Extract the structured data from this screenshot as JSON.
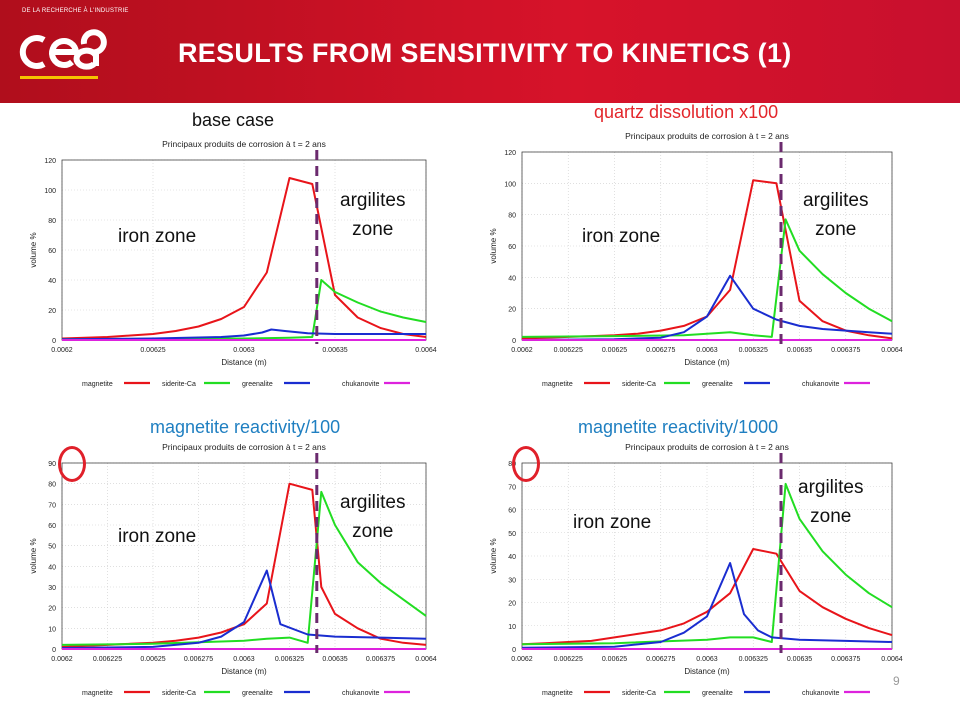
{
  "header": {
    "logo_tagline": "DE LA RECHERCHE À L'INDUSTRIE",
    "logo_text": "cea",
    "title": "RESULTS FROM SENSITIVITY TO KINETICS (1)",
    "background": "#c8102e"
  },
  "page_number": "9",
  "zone_labels": {
    "iron": "iron zone",
    "argilites_line1": "argilites",
    "argilites_line2": "zone"
  },
  "colors": {
    "magnetite": "#e8141a",
    "siderite": "#22dd22",
    "greenalite": "#1a2dd0",
    "chukanovite": "#dd22dd",
    "boundary": "#6b2a6e",
    "label_black": "#111111",
    "label_red": "#e3262b",
    "label_blue": "#1f7fc1",
    "highlight_circle": "#e0202a"
  },
  "chart_data": [
    {
      "type": "line",
      "case_label": "base case",
      "title": "Principaux produits de corrosion à t = 2 ans",
      "xlabel": "Distance (m)",
      "ylabel": "volume %",
      "xlim": [
        0.0062,
        0.0064
      ],
      "ylim": [
        0,
        120
      ],
      "xticks": [
        "0.0062",
        "0.00625",
        "0.0063",
        "0.00635",
        "0.0064"
      ],
      "xtick_values": [
        0.0062,
        0.00625,
        0.0063,
        0.00635,
        0.0064
      ],
      "yticks": [
        0,
        20,
        40,
        60,
        80,
        100,
        120
      ],
      "boundary_x": 0.00634,
      "series": [
        {
          "name": "magnetite",
          "x": [
            0.0062,
            0.0062125,
            0.006225,
            0.0062375,
            0.00625,
            0.0062625,
            0.006275,
            0.0062875,
            0.0063,
            0.0063125,
            0.006325,
            0.0063375,
            0.00635,
            0.0063625,
            0.006375,
            0.0063875,
            0.0064
          ],
          "y": [
            1,
            1.5,
            2,
            3,
            4,
            6,
            9,
            14,
            22,
            45,
            108,
            104,
            30,
            15,
            8,
            4,
            2
          ]
        },
        {
          "name": "siderite-Ca",
          "x": [
            0.0062,
            0.00625,
            0.0063,
            0.006325,
            0.0063375,
            0.0063425,
            0.00635,
            0.0063625,
            0.006375,
            0.0063875,
            0.0064
          ],
          "y": [
            0.5,
            0.8,
            1,
            1.5,
            2,
            40,
            32,
            25,
            19,
            15,
            12
          ]
        },
        {
          "name": "greenalite",
          "x": [
            0.0062,
            0.00625,
            0.0062875,
            0.0063,
            0.00631,
            0.006315,
            0.0063225,
            0.006335,
            0.00635,
            0.006375,
            0.0064
          ],
          "y": [
            0.5,
            1,
            2,
            3,
            5,
            7,
            6,
            4.5,
            4,
            4,
            4
          ]
        },
        {
          "name": "chukanovite",
          "x": [
            0.0062,
            0.0064
          ],
          "y": [
            0,
            0
          ]
        }
      ]
    },
    {
      "type": "line",
      "case_label": "quartz dissolution x100",
      "title": "Principaux produits de corrosion à t = 2 ans",
      "xlabel": "Distance (m)",
      "ylabel": "volume %",
      "xlim": [
        0.0062,
        0.0064
      ],
      "ylim": [
        0,
        120
      ],
      "xticks": [
        "0.0062",
        "0.006225",
        "0.00625",
        "0.006275",
        "0.0063",
        "0.006325",
        "0.00635",
        "0.006375",
        "0.0064"
      ],
      "xtick_values": [
        0.0062,
        0.006225,
        0.00625,
        0.006275,
        0.0063,
        0.006325,
        0.00635,
        0.006375,
        0.0064
      ],
      "yticks": [
        0,
        20,
        40,
        60,
        80,
        100,
        120
      ],
      "boundary_x": 0.00634,
      "series": [
        {
          "name": "magnetite",
          "x": [
            0.0062,
            0.0062125,
            0.006225,
            0.0062375,
            0.00625,
            0.0062625,
            0.006275,
            0.0062875,
            0.0063,
            0.0063125,
            0.006325,
            0.0063375,
            0.00635,
            0.0063625,
            0.006375,
            0.0063875,
            0.0064
          ],
          "y": [
            1,
            1.5,
            2,
            2.5,
            3,
            4,
            6,
            9,
            15,
            32,
            102,
            100,
            25,
            12,
            6,
            3,
            1
          ]
        },
        {
          "name": "siderite-Ca",
          "x": [
            0.0062,
            0.00625,
            0.0062875,
            0.0063,
            0.0063125,
            0.006325,
            0.006335,
            0.0063425,
            0.00635,
            0.0063625,
            0.006375,
            0.0063875,
            0.0064
          ],
          "y": [
            2,
            2.5,
            3,
            4,
            5,
            3,
            2,
            77,
            57,
            42,
            30,
            20,
            12
          ]
        },
        {
          "name": "greenalite",
          "x": [
            0.0062,
            0.00625,
            0.006275,
            0.0062875,
            0.0063,
            0.0063125,
            0.006325,
            0.0063375,
            0.00635,
            0.0063625,
            0.006375,
            0.0063875,
            0.0064
          ],
          "y": [
            0,
            0.5,
            1.5,
            5,
            15,
            41,
            20,
            13,
            9,
            7,
            6,
            5,
            4
          ]
        },
        {
          "name": "chukanovite",
          "x": [
            0.0062,
            0.0064
          ],
          "y": [
            0,
            0
          ]
        }
      ]
    },
    {
      "type": "line",
      "case_label": "magnetite reactivity/100",
      "title": "Principaux produits de corrosion à t = 2 ans",
      "xlabel": "Distance (m)",
      "ylabel": "volume %",
      "xlim": [
        0.0062,
        0.0064
      ],
      "ylim": [
        0,
        90
      ],
      "xticks": [
        "0.0062",
        "0.006225",
        "0.00625",
        "0.006275",
        "0.0063",
        "0.006325",
        "0.00635",
        "0.006375",
        "0.0064"
      ],
      "xtick_values": [
        0.0062,
        0.006225,
        0.00625,
        0.006275,
        0.0063,
        0.006325,
        0.00635,
        0.006375,
        0.0064
      ],
      "yticks": [
        0,
        10,
        20,
        30,
        40,
        50,
        60,
        70,
        80,
        90
      ],
      "boundary_x": 0.00634,
      "highlight_ytick": 90,
      "series": [
        {
          "name": "magnetite",
          "x": [
            0.0062,
            0.0062125,
            0.006225,
            0.0062375,
            0.00625,
            0.0062625,
            0.006275,
            0.0062875,
            0.0063,
            0.0063125,
            0.006325,
            0.0063375,
            0.0063425,
            0.00635,
            0.0063625,
            0.006375,
            0.0063875,
            0.0064
          ],
          "y": [
            1,
            1.5,
            2,
            2.5,
            3,
            4,
            5.5,
            8,
            12,
            22,
            80,
            77,
            30,
            17,
            10,
            5,
            3,
            2
          ]
        },
        {
          "name": "siderite-Ca",
          "x": [
            0.0062,
            0.00625,
            0.0063,
            0.0063125,
            0.006325,
            0.006335,
            0.0063425,
            0.00635,
            0.0063625,
            0.006375,
            0.0063875,
            0.0064
          ],
          "y": [
            2,
            2.5,
            4,
            5,
            5.5,
            3,
            76,
            60,
            42,
            32,
            24,
            16
          ]
        },
        {
          "name": "greenalite",
          "x": [
            0.0062,
            0.00625,
            0.006275,
            0.0062875,
            0.0063,
            0.0063125,
            0.00632,
            0.006335,
            0.00635,
            0.006375,
            0.0064
          ],
          "y": [
            0.5,
            1,
            3,
            6,
            13,
            38,
            12,
            7,
            6,
            5.5,
            5
          ]
        },
        {
          "name": "chukanovite",
          "x": [
            0.0062,
            0.0064
          ],
          "y": [
            0,
            0
          ]
        }
      ]
    },
    {
      "type": "line",
      "case_label": "magnetite reactivity/1000",
      "title": "Principaux produits de corrosion à t = 2 ans",
      "xlabel": "Distance (m)",
      "ylabel": "volume %",
      "xlim": [
        0.0062,
        0.0064
      ],
      "ylim": [
        0,
        80
      ],
      "xticks": [
        "0.0062",
        "0.006225",
        "0.00625",
        "0.006275",
        "0.0063",
        "0.006325",
        "0.00635",
        "0.006375",
        "0.0064"
      ],
      "xtick_values": [
        0.0062,
        0.006225,
        0.00625,
        0.006275,
        0.0063,
        0.006325,
        0.00635,
        0.006375,
        0.0064
      ],
      "yticks": [
        0,
        10,
        20,
        30,
        40,
        50,
        60,
        70,
        80
      ],
      "boundary_x": 0.00634,
      "highlight_ytick": 80,
      "series": [
        {
          "name": "magnetite",
          "x": [
            0.0062,
            0.0062125,
            0.006225,
            0.0062375,
            0.00625,
            0.0062625,
            0.006275,
            0.0062875,
            0.0063,
            0.0063125,
            0.006325,
            0.0063375,
            0.00635,
            0.0063625,
            0.006375,
            0.0063875,
            0.0064
          ],
          "y": [
            2,
            2.5,
            3,
            3.5,
            5,
            6.5,
            8,
            11,
            16,
            24,
            43,
            41,
            25,
            18,
            13,
            9,
            6
          ]
        },
        {
          "name": "siderite-Ca",
          "x": [
            0.0062,
            0.00625,
            0.0063,
            0.0063125,
            0.006325,
            0.006335,
            0.0063425,
            0.00635,
            0.0063625,
            0.006375,
            0.0063875,
            0.0064
          ],
          "y": [
            2,
            2.5,
            4,
            5,
            5,
            3,
            71,
            56,
            42,
            32,
            24,
            18
          ]
        },
        {
          "name": "greenalite",
          "x": [
            0.0062,
            0.00625,
            0.006275,
            0.0062875,
            0.0063,
            0.0063125,
            0.00632,
            0.0063275,
            0.006335,
            0.00635,
            0.006375,
            0.0064
          ],
          "y": [
            0.5,
            1,
            3,
            7,
            14,
            37,
            15,
            8,
            5,
            4,
            3.5,
            3
          ]
        },
        {
          "name": "chukanovite",
          "x": [
            0.0062,
            0.0064
          ],
          "y": [
            0,
            0
          ]
        }
      ]
    }
  ]
}
